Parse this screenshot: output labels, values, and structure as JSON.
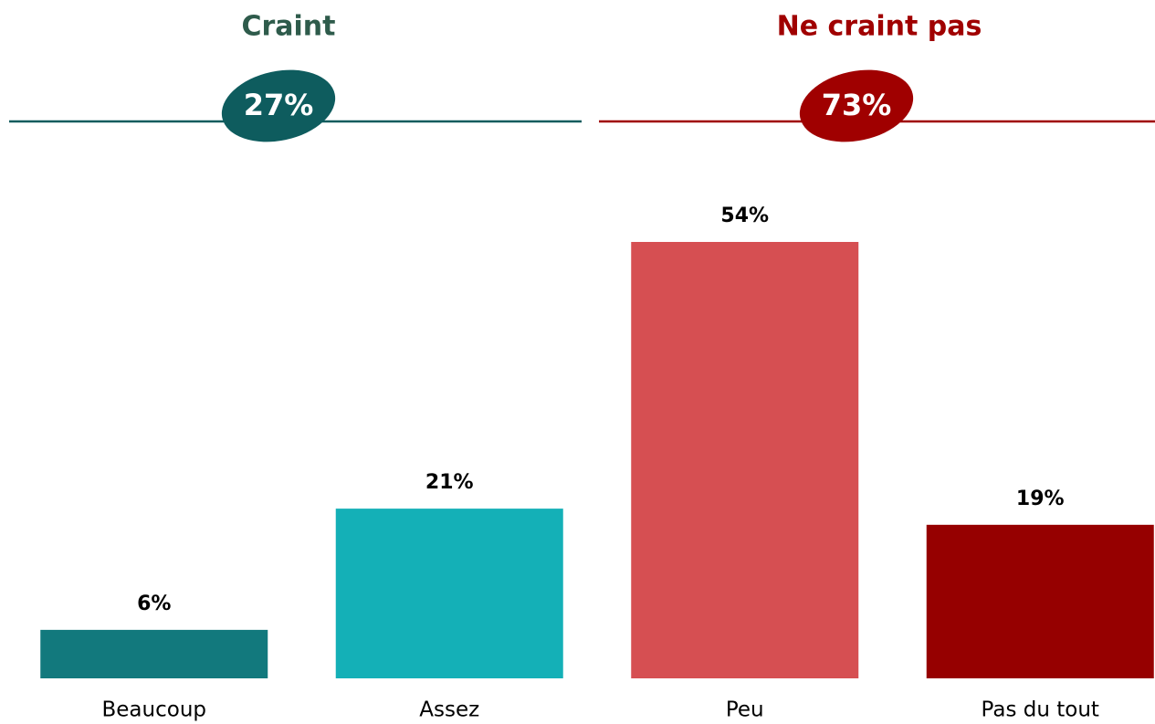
{
  "chart_data": {
    "type": "bar",
    "categories": [
      "Beaucoup",
      "Assez",
      "Peu",
      "Pas du tout"
    ],
    "values": [
      6,
      21,
      54,
      19
    ],
    "value_labels": [
      "6%",
      "21%",
      "54%",
      "19%"
    ],
    "colors": [
      "#12797d",
      "#14b0b7",
      "#d64f52",
      "#960000"
    ],
    "groups": [
      {
        "name": "Craint",
        "value": 27,
        "value_label": "27%",
        "color": "#0e5c5e",
        "title_color": "#2e5b4b"
      },
      {
        "name": "Ne craint pas",
        "value": 73,
        "value_label": "73%",
        "color": "#a00000",
        "title_color": "#a00000"
      }
    ]
  }
}
